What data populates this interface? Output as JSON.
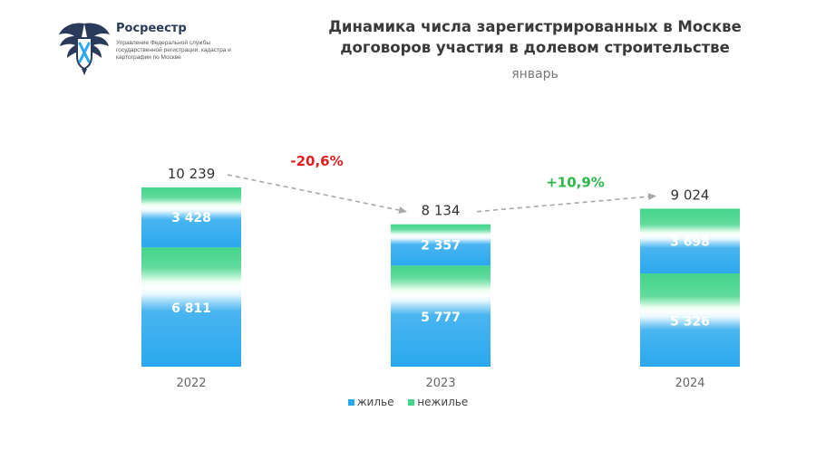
{
  "header": {
    "logo_name": "Росреестр",
    "logo_subtitle": "Управление Федеральной службы государственной регистрации, кадастра и картографии по Москве",
    "title_line1": "Динамика числа зарегистрированных в Москве",
    "title_line2": "договоров участия в долевом строительстве",
    "subtitle": "январь"
  },
  "colors": {
    "housing": "#2aa8ee",
    "nonhousing": "#44d48a",
    "decrease": "#e02020",
    "increase": "#2eb84a",
    "arrow": "#a8a8a8",
    "logo": "#2a3a5a"
  },
  "chart_data": {
    "type": "bar",
    "stacked": true,
    "categories": [
      "2022",
      "2023",
      "2024"
    ],
    "series": [
      {
        "name": "жилье",
        "values": [
          6811,
          5777,
          5326
        ],
        "labels": [
          "6 811",
          "5 777",
          "5 326"
        ]
      },
      {
        "name": "нежилье",
        "values": [
          3428,
          2357,
          3698
        ],
        "labels": [
          "3 428",
          "2 357",
          "3 698"
        ]
      }
    ],
    "totals": [
      10239,
      8134,
      9024
    ],
    "total_labels": [
      "10 239",
      "8 134",
      "9 024"
    ],
    "changes": [
      {
        "from": "2022",
        "to": "2023",
        "label": "-20,6%",
        "direction": "down"
      },
      {
        "from": "2023",
        "to": "2024",
        "label": "+10,9%",
        "direction": "up"
      }
    ],
    "ylim": [
      0,
      10239
    ],
    "grid": false,
    "legend_position": "bottom-center"
  }
}
